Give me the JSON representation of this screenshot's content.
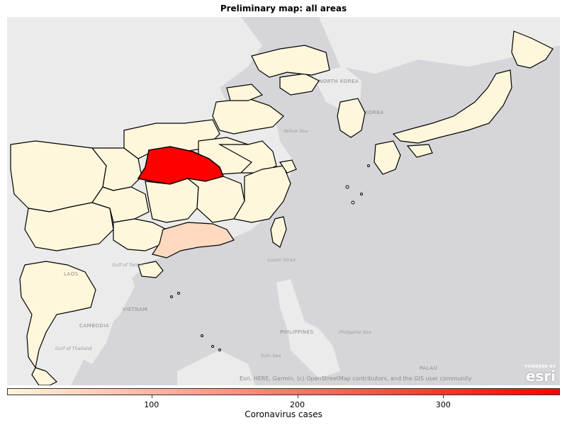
{
  "title": "Preliminary map: all areas",
  "map_labels": {
    "north_korea": "NORTH KOREA",
    "korea": "KOREA",
    "yellow_sea": "Yellow Sea",
    "laos": "LAOS",
    "vietnam": "VIETNAM",
    "cambodia": "CAMBODIA",
    "gulf_of_tonkin": "Gulf of Tonkin",
    "gulf_of_thailand": "Gulf of Thailand",
    "luzon_strait": "Luzon Strait",
    "philippines": "PHILIPPINES",
    "philippine_sea": "Philippine Sea",
    "sulu_sea": "Sulu Sea",
    "palau": "PALAU"
  },
  "attribution": "Esri, HERE, Garmin, (c) OpenStreetMap contributors, and the GIS user community",
  "esri": {
    "powered": "POWERED BY",
    "brand": "esri"
  },
  "colorbar": {
    "label": "Coronavirus cases",
    "min_color": "#fff5dc",
    "max_color": "#ff0000",
    "ticks": [
      {
        "value": 100,
        "label": "100"
      },
      {
        "value": 200,
        "label": "200"
      },
      {
        "value": 300,
        "label": "300"
      }
    ],
    "range": [
      1,
      380
    ]
  },
  "colors": {
    "ocean": "#d6d6da",
    "land_other": "#ebebeb",
    "low": "#fff7dc",
    "medium": "#fdd9bf",
    "high": "#ff0000"
  },
  "regions": [
    {
      "name": "Hubei",
      "level": "high"
    },
    {
      "name": "Guangdong",
      "level": "medium"
    }
  ]
}
